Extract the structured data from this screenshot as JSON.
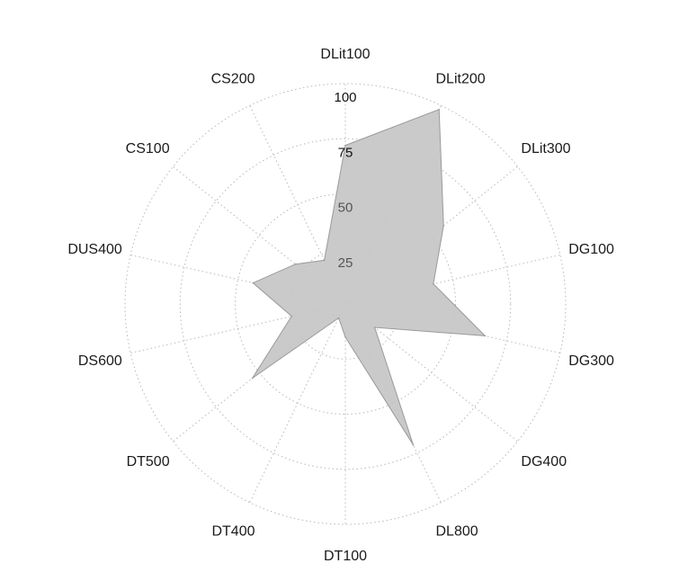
{
  "chart_data": {
    "type": "radar",
    "title": "",
    "categories": [
      "DLit100",
      "DLit200",
      "DLit300",
      "DG100",
      "DG300",
      "DG400",
      "DL800",
      "DT100",
      "DT400",
      "DT500",
      "DS600",
      "DUS400",
      "CS100",
      "CS200"
    ],
    "series": [
      {
        "values": [
          72,
          98,
          57,
          41,
          65,
          17,
          71,
          15,
          7,
          54,
          25,
          43,
          29,
          22
        ]
      }
    ],
    "r_ticks": [
      25,
      50,
      75,
      100
    ],
    "rlim": [
      0,
      100
    ],
    "grid": true,
    "colors": {
      "fill": "#c6c6c6",
      "stroke": "#9a9a9a",
      "grid": "#b8b8b8"
    }
  }
}
